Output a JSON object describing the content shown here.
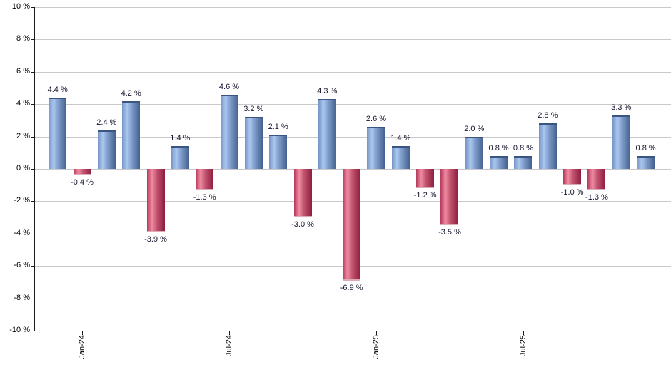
{
  "chart_data": {
    "type": "bar",
    "title": "",
    "xlabel": "",
    "ylabel": "",
    "unit": "%",
    "grid": true,
    "legend": null,
    "ylim": [
      -10,
      10
    ],
    "y_tick_step": 2,
    "y_ticks": [
      {
        "value": 10,
        "label": "10 %"
      },
      {
        "value": 8,
        "label": "8 %"
      },
      {
        "value": 6,
        "label": "6 %"
      },
      {
        "value": 4,
        "label": "4 %"
      },
      {
        "value": 2,
        "label": "2 %"
      },
      {
        "value": 0,
        "label": "0 %"
      },
      {
        "value": -2,
        "label": "-2 %"
      },
      {
        "value": -4,
        "label": "-4 %"
      },
      {
        "value": -6,
        "label": "-6 %"
      },
      {
        "value": -8,
        "label": "-8 %"
      },
      {
        "value": -10,
        "label": "-10 %"
      }
    ],
    "values": [
      4.4,
      -0.4,
      2.4,
      4.2,
      -3.9,
      1.4,
      -1.3,
      4.6,
      3.2,
      2.1,
      -3.0,
      4.3,
      -6.9,
      2.6,
      1.4,
      -1.2,
      -3.5,
      2.0,
      0.8,
      0.8,
      2.8,
      -1.0,
      -1.3,
      3.3,
      0.8
    ],
    "bar_value_labels": [
      "4.4 %",
      "-0.4 %",
      "2.4 %",
      "4.2 %",
      "-3.9 %",
      "1.4 %",
      "-1.3 %",
      "4.6 %",
      "3.2 %",
      "2.1 %",
      "-3.0 %",
      "4.3 %",
      "-6.9 %",
      "2.6 %",
      "1.4 %",
      "-1.2 %",
      "-3.5 %",
      "2.0 %",
      "0.8 %",
      "0.8 %",
      "2.8 %",
      "-1.0 %",
      "-1.3 %",
      "3.3 %",
      "0.8 %"
    ],
    "x_axis_ticks": [
      {
        "label": "Jan-24",
        "bar_index": 1
      },
      {
        "label": "Jul-24",
        "bar_index": 7
      },
      {
        "label": "Jan-25",
        "bar_index": 13
      },
      {
        "label": "Jul-25",
        "bar_index": 19
      }
    ],
    "colors": {
      "positive_edge": "#7494c6",
      "positive_light": "#abc7ef",
      "positive_dark": "#44618f",
      "positive_cap": "#3a5680",
      "negative_edge": "#b5395b",
      "negative_light": "#ee8ba2",
      "negative_dark": "#8c1e3e",
      "gridline": "#c9c9c9",
      "axis": "#1a1a1a",
      "value_label_text": "#14142c",
      "tick_label_text": "#000000",
      "background": "#ffffff"
    }
  }
}
